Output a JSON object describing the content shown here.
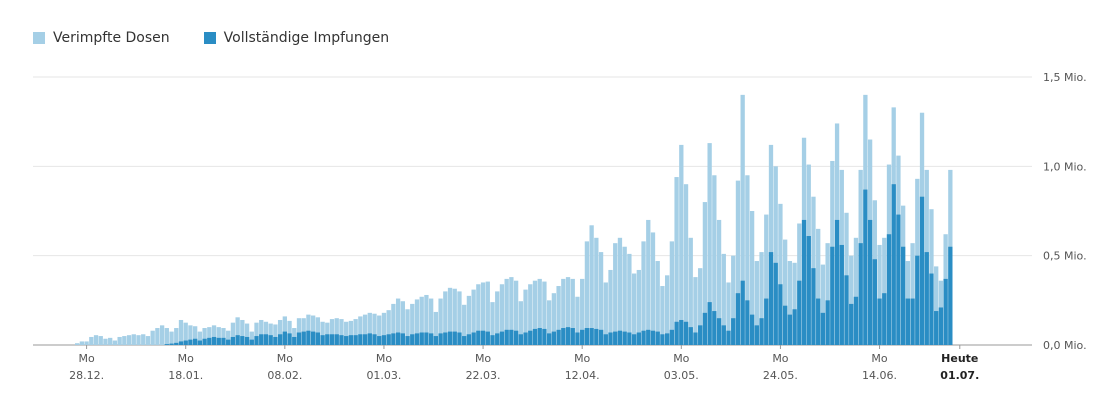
{
  "legend": {
    "dosen": "Verimpfte Dosen",
    "voll": "Vollständige Impfungen"
  },
  "colors": {
    "dosen": "#a5cfe6",
    "voll": "#2a8dc4",
    "grid": "#e6e6e6",
    "axis": "#999999"
  },
  "chart_data": {
    "type": "bar",
    "stacked_overlay": true,
    "ylim": [
      0,
      1500000
    ],
    "y_ticks": [
      {
        "value": 0,
        "label": "0,0 Mio."
      },
      {
        "value": 500000,
        "label": "0,5 Mio."
      },
      {
        "value": 1000000,
        "label": "1,0 Mio."
      },
      {
        "value": 1500000,
        "label": "1,5 Mio."
      }
    ],
    "x_ticks": [
      {
        "index": 2,
        "top": "Mo",
        "bottom": "28.12."
      },
      {
        "index": 23,
        "top": "Mo",
        "bottom": "18.01."
      },
      {
        "index": 44,
        "top": "Mo",
        "bottom": "08.02."
      },
      {
        "index": 65,
        "top": "Mo",
        "bottom": "01.03."
      },
      {
        "index": 86,
        "top": "Mo",
        "bottom": "22.03."
      },
      {
        "index": 107,
        "top": "Mo",
        "bottom": "12.04."
      },
      {
        "index": 128,
        "top": "Mo",
        "bottom": "03.05."
      },
      {
        "index": 149,
        "top": "Mo",
        "bottom": "24.05."
      },
      {
        "index": 170,
        "top": "Mo",
        "bottom": "14.06."
      },
      {
        "index": 187,
        "top": "Heute",
        "bottom": "01.07.",
        "bold": true
      }
    ],
    "series": [
      {
        "name": "Verimpfte Dosen",
        "values": [
          10000,
          20000,
          20000,
          45000,
          55000,
          50000,
          35000,
          40000,
          25000,
          45000,
          50000,
          55000,
          60000,
          55000,
          60000,
          50000,
          80000,
          95000,
          110000,
          95000,
          75000,
          95000,
          140000,
          125000,
          110000,
          105000,
          75000,
          95000,
          100000,
          110000,
          100000,
          95000,
          80000,
          125000,
          155000,
          140000,
          120000,
          75000,
          125000,
          140000,
          130000,
          120000,
          115000,
          140000,
          160000,
          135000,
          95000,
          150000,
          150000,
          170000,
          165000,
          155000,
          130000,
          125000,
          145000,
          150000,
          145000,
          130000,
          135000,
          145000,
          160000,
          170000,
          180000,
          175000,
          165000,
          180000,
          195000,
          230000,
          260000,
          245000,
          200000,
          230000,
          255000,
          270000,
          280000,
          260000,
          185000,
          260000,
          300000,
          320000,
          315000,
          300000,
          225000,
          275000,
          310000,
          340000,
          350000,
          355000,
          240000,
          300000,
          340000,
          370000,
          380000,
          360000,
          245000,
          310000,
          340000,
          360000,
          370000,
          355000,
          250000,
          290000,
          330000,
          370000,
          380000,
          370000,
          270000,
          370000,
          580000,
          670000,
          600000,
          520000,
          350000,
          420000,
          570000,
          600000,
          550000,
          510000,
          400000,
          420000,
          580000,
          700000,
          630000,
          470000,
          330000,
          390000,
          580000,
          940000,
          1120000,
          900000,
          600000,
          380000,
          430000,
          800000,
          1130000,
          950000,
          700000,
          510000,
          350000,
          500000,
          920000,
          1400000,
          950000,
          750000,
          470000,
          520000,
          730000,
          1120000,
          1000000,
          790000,
          590000,
          470000,
          460000,
          680000,
          1160000,
          1010000,
          830000,
          650000,
          450000,
          570000,
          1030000,
          1240000,
          980000,
          740000,
          500000,
          600000,
          980000,
          1400000,
          1150000,
          810000,
          560000,
          600000,
          1010000,
          1330000,
          1060000,
          780000,
          470000,
          570000,
          930000,
          1300000,
          980000,
          760000,
          440000,
          360000,
          620000,
          980000
        ]
      },
      {
        "name": "Vollständige Impfungen",
        "values": [
          0,
          0,
          0,
          0,
          0,
          0,
          0,
          0,
          0,
          0,
          0,
          0,
          0,
          0,
          0,
          0,
          0,
          0,
          0,
          5000,
          8000,
          12000,
          20000,
          25000,
          30000,
          35000,
          25000,
          35000,
          40000,
          45000,
          40000,
          40000,
          30000,
          45000,
          55000,
          50000,
          45000,
          30000,
          50000,
          60000,
          60000,
          55000,
          45000,
          60000,
          75000,
          65000,
          45000,
          70000,
          75000,
          80000,
          75000,
          70000,
          55000,
          60000,
          60000,
          60000,
          55000,
          50000,
          55000,
          55000,
          60000,
          60000,
          65000,
          60000,
          50000,
          55000,
          60000,
          65000,
          70000,
          65000,
          50000,
          60000,
          65000,
          70000,
          70000,
          65000,
          50000,
          65000,
          70000,
          75000,
          75000,
          70000,
          50000,
          60000,
          70000,
          80000,
          80000,
          75000,
          55000,
          65000,
          75000,
          85000,
          85000,
          80000,
          60000,
          70000,
          80000,
          90000,
          95000,
          90000,
          65000,
          75000,
          85000,
          95000,
          100000,
          95000,
          70000,
          85000,
          95000,
          95000,
          90000,
          85000,
          60000,
          70000,
          75000,
          80000,
          75000,
          70000,
          60000,
          70000,
          80000,
          85000,
          80000,
          75000,
          60000,
          65000,
          85000,
          130000,
          140000,
          130000,
          100000,
          70000,
          110000,
          180000,
          240000,
          190000,
          150000,
          110000,
          80000,
          150000,
          290000,
          360000,
          250000,
          170000,
          110000,
          150000,
          260000,
          520000,
          460000,
          340000,
          220000,
          170000,
          200000,
          360000,
          700000,
          610000,
          430000,
          260000,
          180000,
          250000,
          550000,
          700000,
          560000,
          390000,
          230000,
          270000,
          570000,
          870000,
          700000,
          480000,
          260000,
          290000,
          620000,
          900000,
          730000,
          550000,
          260000,
          260000,
          500000,
          830000,
          520000,
          400000,
          190000,
          210000,
          370000,
          550000
        ]
      }
    ]
  }
}
